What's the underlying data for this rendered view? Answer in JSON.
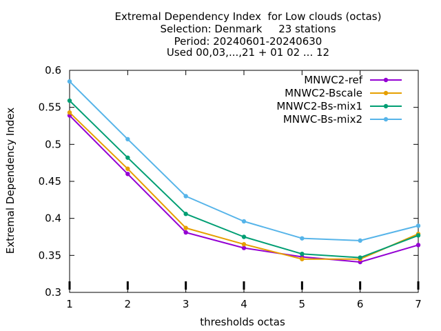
{
  "chart_data": {
    "type": "line",
    "title_lines": [
      "Extremal Dependency Index  for Low clouds (octas)",
      "Selection: Denmark     23 stations",
      "Period: 20240601-20240630",
      "Used 00,03,...,21 + 01 02 ... 12"
    ],
    "xlabel": "thresholds octas",
    "ylabel": "Extremal Dependency Index",
    "x": [
      1,
      2,
      3,
      4,
      5,
      6,
      7
    ],
    "xlim": [
      1,
      7
    ],
    "ylim": [
      0.3,
      0.6
    ],
    "yticks": [
      0.3,
      0.35,
      0.4,
      0.45,
      0.5,
      0.55,
      0.6
    ],
    "ytick_labels": [
      "0.3",
      "0.35",
      "0.4",
      "0.45",
      "0.5",
      "0.55",
      "0.6"
    ],
    "xtick_labels": [
      "1",
      "2",
      "3",
      "4",
      "5",
      "6",
      "7"
    ],
    "grid": false,
    "legend_position": "top-right",
    "series": [
      {
        "name": "MNWC2-ref",
        "color": "#9400d3",
        "values": [
          0.539,
          0.46,
          0.381,
          0.36,
          0.348,
          0.341,
          0.364
        ]
      },
      {
        "name": "MNWC2-Bscale",
        "color": "#e69f00",
        "values": [
          0.543,
          0.467,
          0.387,
          0.365,
          0.345,
          0.345,
          0.379
        ]
      },
      {
        "name": "MNWC2-Bs-mix1",
        "color": "#009e73",
        "values": [
          0.559,
          0.482,
          0.406,
          0.375,
          0.352,
          0.347,
          0.377
        ]
      },
      {
        "name": "MNWC-Bs-mix2",
        "color": "#56b4e9",
        "values": [
          0.585,
          0.507,
          0.43,
          0.396,
          0.373,
          0.37,
          0.39
        ]
      }
    ]
  }
}
